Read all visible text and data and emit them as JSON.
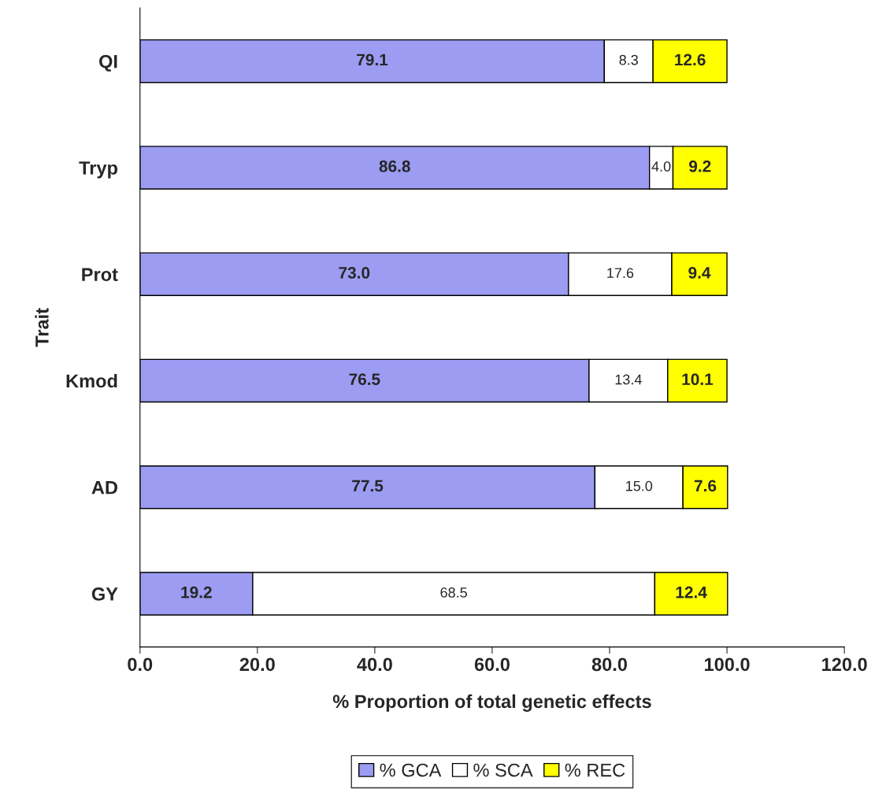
{
  "chart_data": {
    "type": "bar",
    "orientation": "horizontal",
    "stacked": true,
    "categories": [
      "QI",
      "Tryp",
      "Prot",
      "Kmod",
      "AD",
      "GY"
    ],
    "series": [
      {
        "name": "% GCA",
        "color": "#9c9cf2",
        "values": [
          79.1,
          86.8,
          73.0,
          76.5,
          77.5,
          19.2
        ],
        "value_labels": [
          "79.1",
          "86.8",
          "73.0",
          "76.5",
          "77.5",
          "19.2"
        ]
      },
      {
        "name": "% SCA",
        "color": "#ffffff",
        "values": [
          8.3,
          4.0,
          17.6,
          13.4,
          15.0,
          68.5
        ],
        "value_labels": [
          "8.3",
          "4.0",
          "17.6",
          "13.4",
          "15.0",
          "68.5"
        ]
      },
      {
        "name": "% REC",
        "color": "#ffff00",
        "values": [
          12.6,
          9.2,
          9.4,
          10.1,
          7.6,
          12.4
        ],
        "value_labels": [
          "12.6",
          "9.2",
          "9.4",
          "10.1",
          "7.6",
          "12.4"
        ]
      }
    ],
    "xlim": [
      0,
      120
    ],
    "xticks": [
      {
        "value": 0,
        "label": "0.0"
      },
      {
        "value": 20,
        "label": "20.0"
      },
      {
        "value": 40,
        "label": "40.0"
      },
      {
        "value": 60,
        "label": "60.0"
      },
      {
        "value": 80,
        "label": "80.0"
      },
      {
        "value": 100,
        "label": "100.0"
      },
      {
        "value": 120,
        "label": "120.0"
      }
    ],
    "xlabel": "% Proportion of total genetic effects",
    "ylabel": "Trait",
    "legend": "bottom",
    "grid": false
  }
}
